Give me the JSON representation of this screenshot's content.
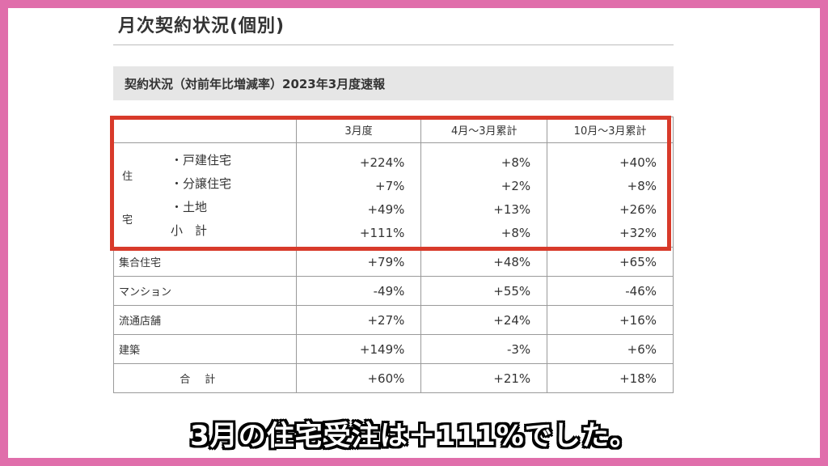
{
  "page_title": "月次契約状況(個別)",
  "subtitle": "契約状況（対前年比増減率）2023年3月度速報",
  "columns": [
    "3月度",
    "4月〜3月累計",
    "10月〜3月累計"
  ],
  "housing": {
    "label_top": "住",
    "label_bottom": "宅",
    "items": [
      {
        "label": "・戸建住宅",
        "values": [
          "+224%",
          "+8%",
          "+40%"
        ]
      },
      {
        "label": "・分譲住宅",
        "values": [
          "+7%",
          "+2%",
          "+8%"
        ]
      },
      {
        "label": "・土地",
        "values": [
          "+49%",
          "+13%",
          "+26%"
        ]
      },
      {
        "label": "小　計",
        "values": [
          "+111%",
          "+8%",
          "+32%"
        ]
      }
    ]
  },
  "rows": [
    {
      "label": "集合住宅",
      "values": [
        "+79%",
        "+48%",
        "+65%"
      ]
    },
    {
      "label": "マンション",
      "values": [
        "-49%",
        "+55%",
        "-46%"
      ]
    },
    {
      "label": "流通店舗",
      "values": [
        "+27%",
        "+24%",
        "+16%"
      ]
    },
    {
      "label": "建築",
      "values": [
        "+149%",
        "-3%",
        "+6%"
      ]
    }
  ],
  "total": {
    "label": "合計",
    "values": [
      "+60%",
      "+21%",
      "+18%"
    ]
  },
  "caption": "3月の住宅受注は＋111%でした。",
  "colors": {
    "border_frame": "#e06eab",
    "highlight": "#d83a2a"
  }
}
